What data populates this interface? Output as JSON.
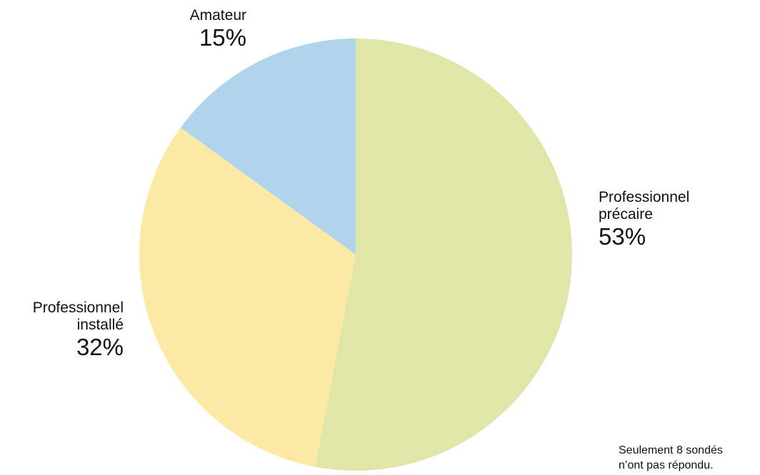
{
  "chart_data": {
    "type": "pie",
    "title": "",
    "slices": [
      {
        "label_line1": "Professionnel",
        "label_line2": "précaire",
        "value": 53,
        "value_label": "53%",
        "color": "#e0e6a8"
      },
      {
        "label_line1": "Professionnel",
        "label_line2": "installé",
        "value": 32,
        "value_label": "32%",
        "color": "#fce9a3"
      },
      {
        "label_line1": "Amateur",
        "label_line2": "",
        "value": 15,
        "value_label": "15%",
        "color": "#b0d4ec"
      }
    ],
    "start_angle_deg": 0,
    "direction": "clockwise"
  },
  "footnote": {
    "line1": "Seulement 8 sondés",
    "line2": "n’ont pas répondu."
  }
}
